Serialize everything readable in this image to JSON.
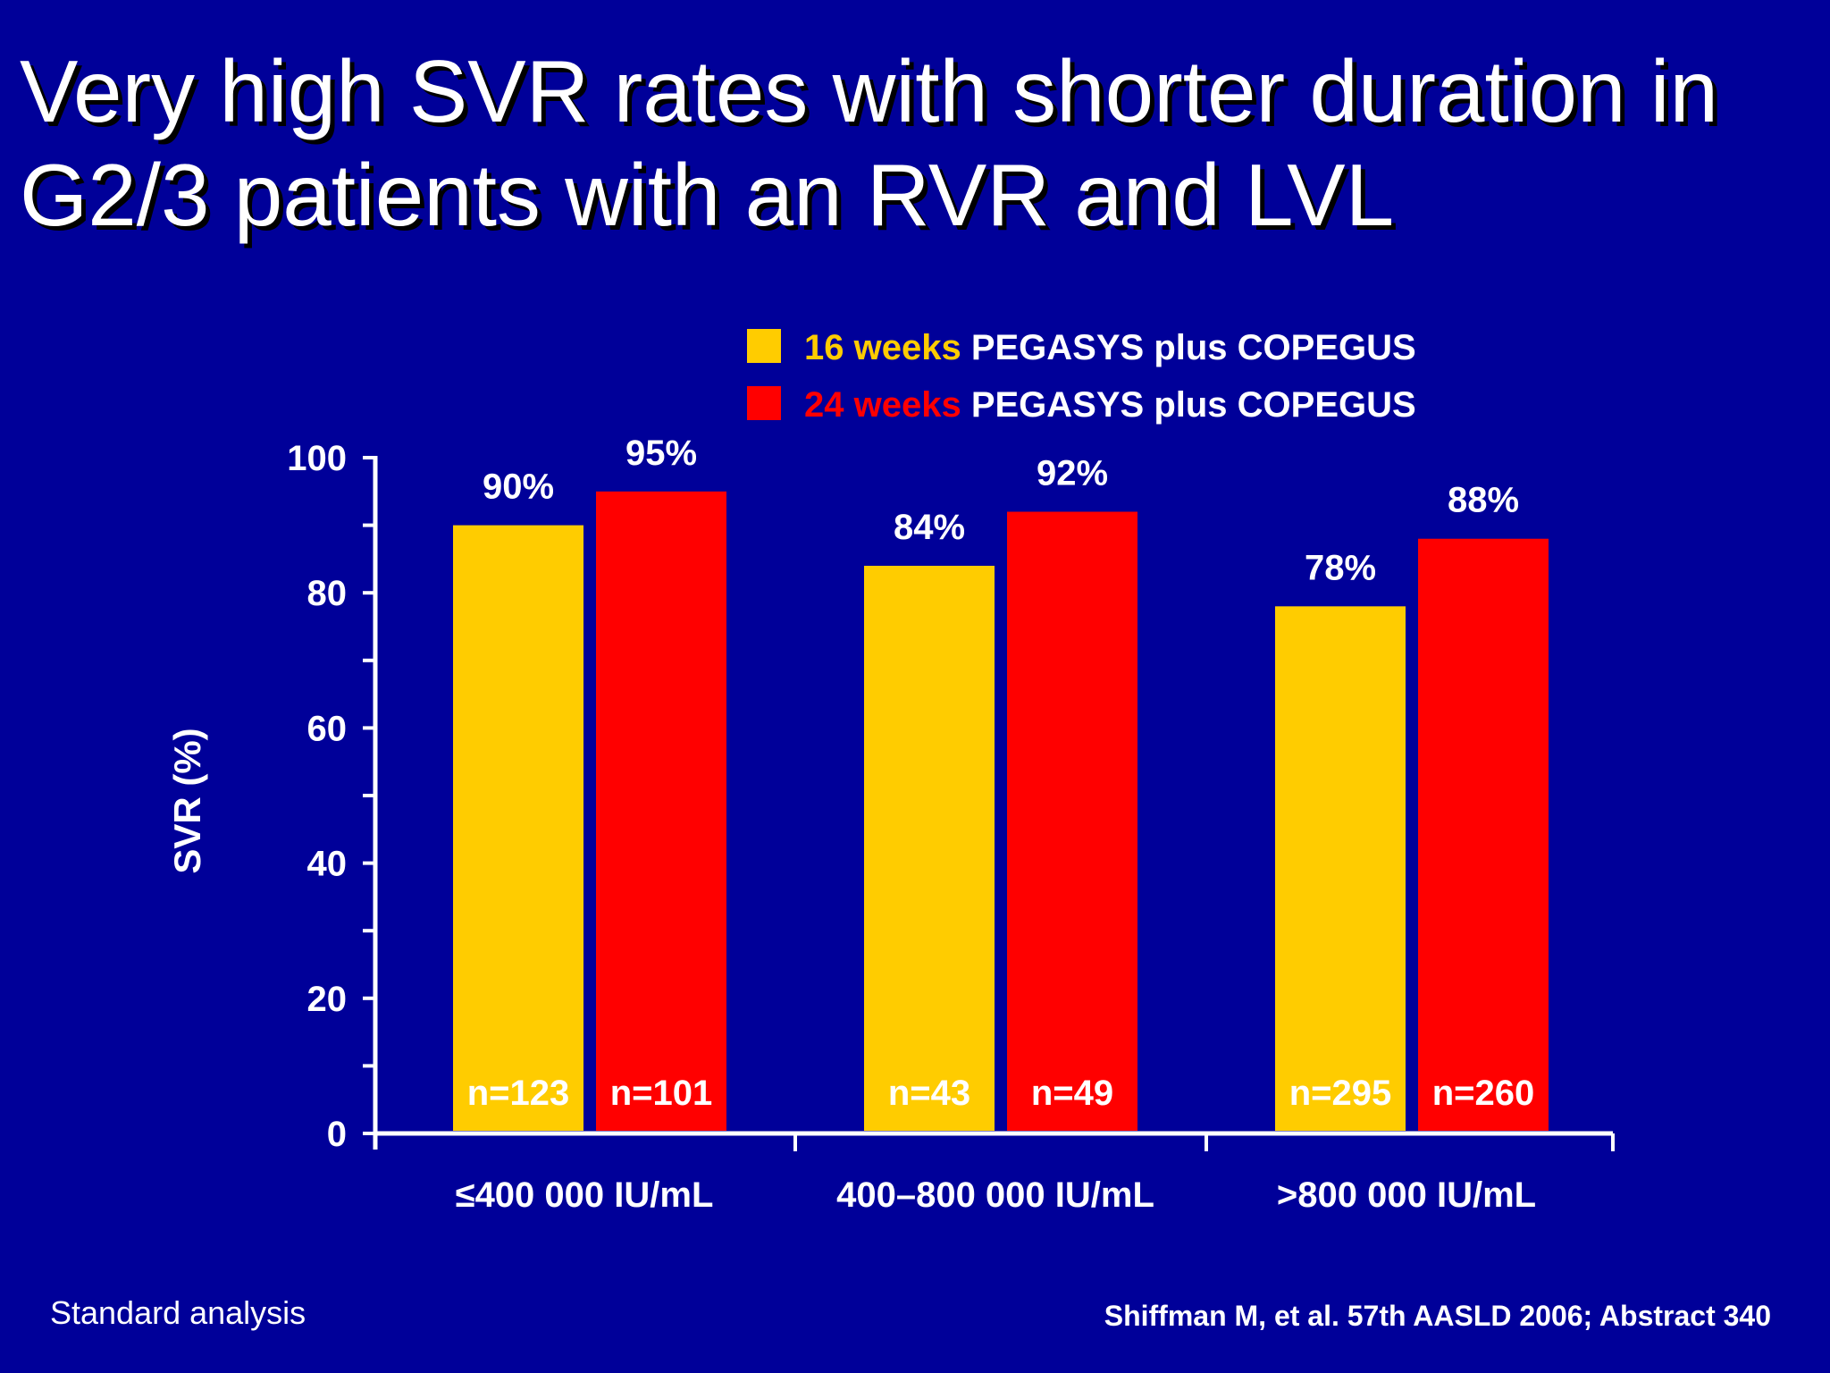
{
  "title": {
    "line1": "Very high SVR rates with shorter duration in",
    "line2": "G2/3 patients with an RVR and LVL"
  },
  "footer": {
    "left": "Standard analysis",
    "right": "Shiffman M, et al. 57th AASLD 2006; Abstract 340"
  },
  "colors": {
    "background": "#000099",
    "series16": "#FFCC00",
    "series24": "#FF0000",
    "text": "#FFFFFF"
  },
  "chart_data": {
    "type": "bar",
    "categories": [
      "≤400 000 IU/mL",
      "400–800 000 IU/mL",
      ">800 000 IU/mL"
    ],
    "series": [
      {
        "name": "16 weeks PEGASYS plus COPEGUS",
        "legend_highlight": "16 weeks",
        "legend_rest": " PEGASYS plus COPEGUS",
        "color": "#FFCC00",
        "values": [
          90,
          84,
          78
        ],
        "value_labels": [
          "90%",
          "84%",
          "78%"
        ],
        "n_labels": [
          "n=123",
          "n=43",
          "n=295"
        ]
      },
      {
        "name": "24 weeks PEGASYS plus COPEGUS",
        "legend_highlight": "24 weeks",
        "legend_rest": " PEGASYS plus COPEGUS",
        "color": "#FF0000",
        "values": [
          95,
          92,
          88
        ],
        "value_labels": [
          "95%",
          "92%",
          "88%"
        ],
        "n_labels": [
          "n=101",
          "n=49",
          "n=260"
        ]
      }
    ],
    "ylabel": "SVR (%)",
    "ylim": [
      0,
      100
    ],
    "yticks": [
      0,
      20,
      40,
      60,
      80,
      100
    ],
    "grid": false,
    "legend_position": "top-right"
  }
}
